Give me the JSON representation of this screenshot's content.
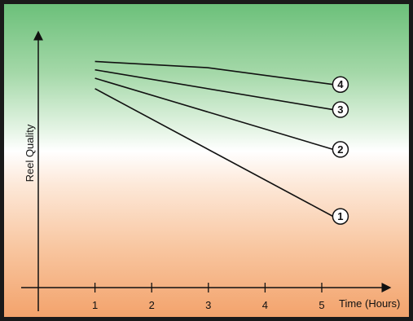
{
  "chart_data": {
    "type": "line",
    "xlabel": "Time (Hours)",
    "ylabel": "Reel Quality",
    "xlim": [
      0,
      5.6
    ],
    "ylim": [
      0,
      12
    ],
    "x_ticks": [
      1,
      2,
      3,
      4,
      5
    ],
    "x_tick_labels": [
      "1",
      "2",
      "3",
      "4",
      "5"
    ],
    "y_ticks_labeled": false,
    "grid": false,
    "legend": "none",
    "line_color": "#111111",
    "background_gradient": [
      "#6cc07a",
      "#ffffff",
      "#f3a36c"
    ],
    "series": [
      {
        "marker": "1",
        "x": [
          1,
          5.2
        ],
        "y": [
          9.5,
          3.4
        ]
      },
      {
        "marker": "2",
        "x": [
          1,
          5.2
        ],
        "y": [
          10.0,
          6.6
        ]
      },
      {
        "marker": "3",
        "x": [
          1,
          5.2
        ],
        "y": [
          10.4,
          8.5
        ]
      },
      {
        "marker": "4",
        "x": [
          1,
          3,
          5.2
        ],
        "y": [
          10.8,
          10.5,
          9.7
        ]
      }
    ]
  }
}
